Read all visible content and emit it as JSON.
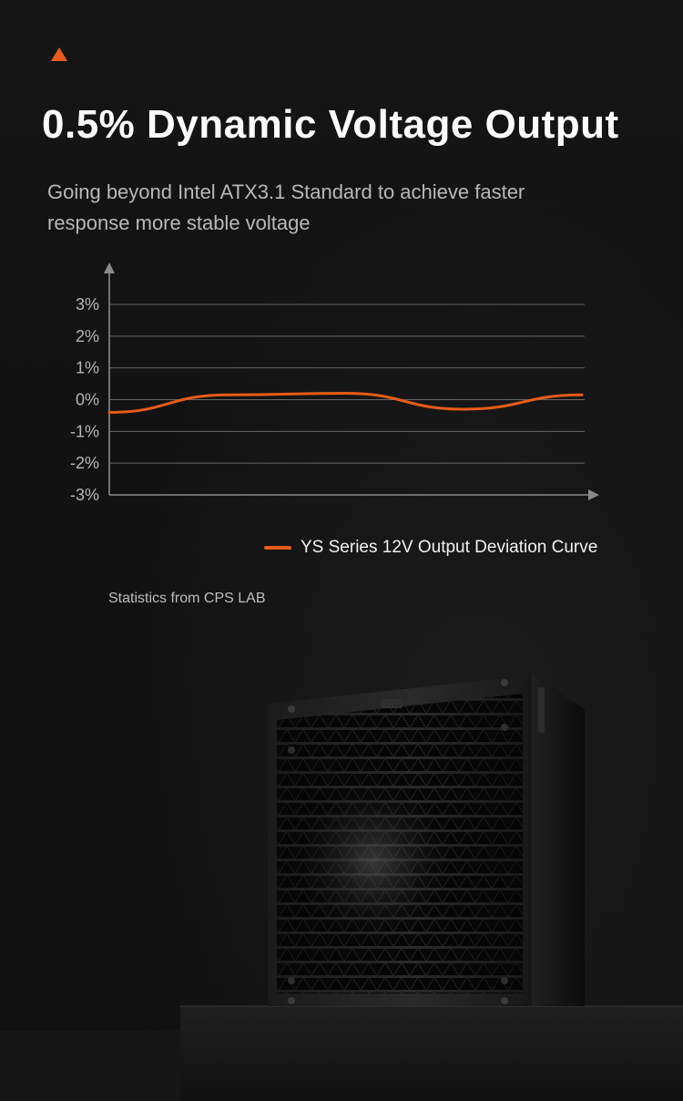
{
  "header": {
    "title": "0.5% Dynamic Voltage Output",
    "subtitle": "Going beyond Intel ATX3.1 Standard to achieve faster response more stable voltage"
  },
  "chart_data": {
    "type": "line",
    "title": "",
    "xlabel": "",
    "ylabel": "",
    "ylim": [
      -3,
      3
    ],
    "y_ticks": [
      "3%",
      "2%",
      "1%",
      "0%",
      "-1%",
      "-2%",
      "-3%"
    ],
    "y_tick_values": [
      3,
      2,
      1,
      0,
      -1,
      -2,
      -3
    ],
    "grid": true,
    "legend_position": "bottom-right",
    "series": [
      {
        "name": "YS Series 12V Output Deviation Curve",
        "color": "#e85b18",
        "values": [
          -0.4,
          0.15,
          0.2,
          -0.3,
          0.15
        ]
      }
    ]
  },
  "footnote": {
    "source_label": "Statistics from CPS LAB"
  },
  "colors": {
    "accent": "#e85b18",
    "background": "#121212"
  },
  "icons": {
    "accent_mark": "triangle-up-icon",
    "chart_axis_arrow": "arrow-icon"
  }
}
